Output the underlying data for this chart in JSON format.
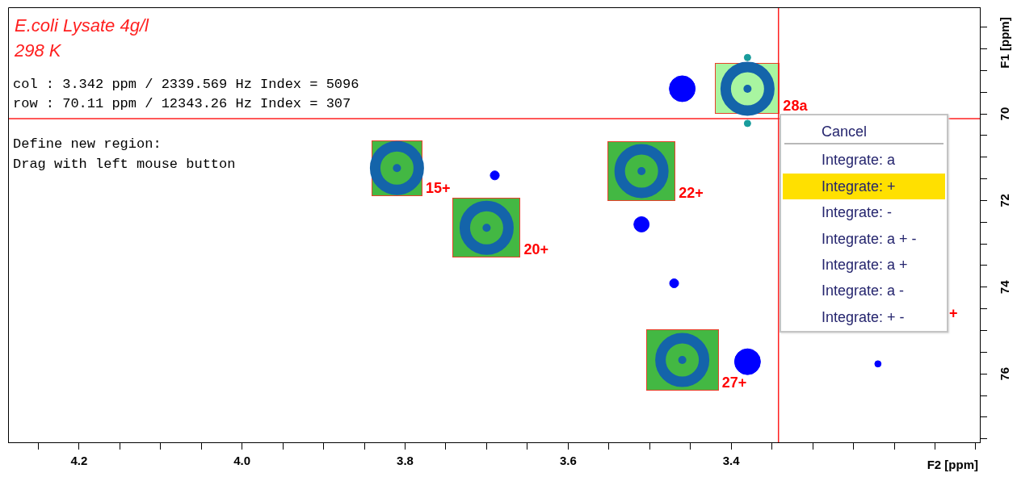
{
  "chart_data": {
    "type": "scatter",
    "title": "E.coli Lysate 4g/l",
    "subtitle": "298 K",
    "xlabel": "F2 [ppm]",
    "ylabel": "F1 [ppm]",
    "xlim": [
      4.287,
      3.095
    ],
    "ylim": [
      77.58,
      67.54
    ],
    "xticks": [
      {
        "value": 4.25,
        "label": null
      },
      4.2,
      {
        "value": 4.15,
        "label": null
      },
      {
        "value": 4.1,
        "label": null
      },
      {
        "value": 4.05,
        "label": null
      },
      {
        "value": 4,
        "label": "4.0"
      },
      {
        "value": 3.95,
        "label": null
      },
      {
        "value": 3.9,
        "label": null
      },
      {
        "value": 3.85,
        "label": null
      },
      3.8,
      {
        "value": 3.75,
        "label": null
      },
      {
        "value": 3.7,
        "label": null
      },
      {
        "value": 3.65,
        "label": null
      },
      3.6,
      {
        "value": 3.55,
        "label": null
      },
      {
        "value": 3.5,
        "label": null
      },
      {
        "value": 3.45,
        "label": null
      },
      3.4,
      {
        "value": 3.35,
        "label": null
      },
      {
        "value": 3.3,
        "label": null
      },
      {
        "value": 3.25,
        "label": null
      },
      {
        "value": 3.2,
        "label": null
      },
      {
        "value": 3.15,
        "label": null
      },
      {
        "value": 3.1,
        "label": null
      }
    ],
    "yticks": [
      {
        "value": 68,
        "label": null
      },
      {
        "value": 68.5,
        "label": null
      },
      {
        "value": 69,
        "label": null
      },
      {
        "value": 69.5,
        "label": null
      },
      70,
      {
        "value": 70.5,
        "label": null
      },
      {
        "value": 71,
        "label": null
      },
      {
        "value": 71.5,
        "label": null
      },
      72,
      {
        "value": 72.5,
        "label": null
      },
      {
        "value": 73,
        "label": null
      },
      {
        "value": 73.5,
        "label": null
      },
      74,
      {
        "value": 74.5,
        "label": null
      },
      {
        "value": 75,
        "label": null
      },
      {
        "value": 75.5,
        "label": null
      },
      76,
      {
        "value": 76.5,
        "label": null
      },
      {
        "value": 77,
        "label": null
      },
      {
        "value": 77.5,
        "label": null
      }
    ],
    "series": [
      {
        "marker": "circle",
        "color": "#1464aa",
        "x": [
          3.81,
          3.7,
          3.51,
          3.46,
          3.38
        ],
        "values": [
          71.25,
          72.63,
          71.32,
          75.68,
          69.42
        ]
      },
      {
        "type": "bubble",
        "marker": "circle",
        "color": "#0000ff",
        "x": [
          3.46,
          3.69,
          3.51,
          3.47,
          3.38,
          3.22
        ],
        "values": [
          69.42,
          71.42,
          72.55,
          73.91,
          75.72,
          75.77
        ],
        "sizes": [
          1,
          0.12,
          0.35,
          0.12,
          1,
          0.06
        ]
      },
      {
        "marker": "circle",
        "color": "#199c9c",
        "x": [
          3.38,
          3.38
        ],
        "values": [
          68.7,
          70.22
        ]
      }
    ],
    "ref_lines": [
      {
        "axis": "x",
        "value": 3.342,
        "color": "#ff2020",
        "line_style": "solid"
      },
      {
        "axis": "y",
        "value": 70.11,
        "color": "#ff2020",
        "line_style": "solid"
      }
    ],
    "annotations": [
      "col : 3.342 ppm / 2339.569 Hz Index = 5096",
      "row : 70.11 ppm / 12343.26 Hz Index = 307",
      "Define new region:",
      "Drag with left mouse button",
      "Cancel",
      "Integrate: a",
      "Integrate: +",
      "Integrate: -",
      "Integrate: a + -",
      "Integrate: a +",
      "Integrate: a -",
      "Integrate: + -",
      "+",
      {
        "text": "15+",
        "x": 3.81,
        "y": 71.25
      },
      {
        "text": "20+",
        "x": 3.7,
        "y": 72.63
      },
      {
        "text": "22+",
        "x": 3.51,
        "y": 71.32
      },
      {
        "text": "27+",
        "x": 3.46,
        "y": 75.68
      },
      {
        "text": "28a",
        "x": 3.38,
        "y": 69.42
      }
    ]
  }
}
